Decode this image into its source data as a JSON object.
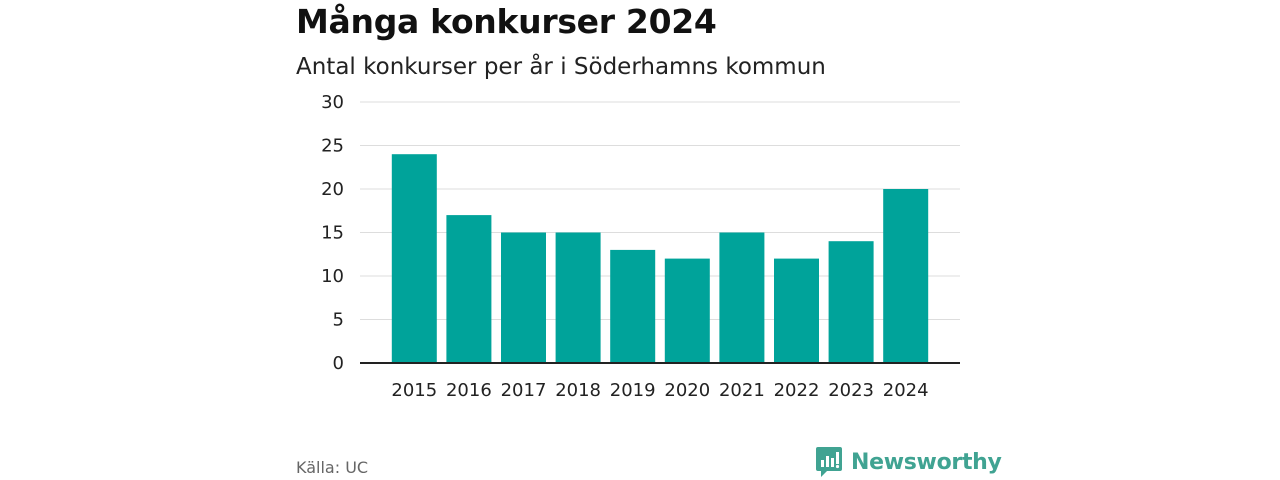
{
  "title": "Många konkurser 2024",
  "subtitle": "Antal konkurser per år i Söderhamns kommun",
  "source": "Källa: UC",
  "brand": {
    "name": "Newsworthy",
    "color": "#40a392",
    "icon": "newsworthy-logo-icon"
  },
  "colors": {
    "bar": "#00a39a",
    "grid": "#dddddd",
    "axis": "#222222"
  },
  "chart_data": {
    "type": "bar",
    "title": "Många konkurser 2024",
    "subtitle": "Antal konkurser per år i Söderhamns kommun",
    "xlabel": "",
    "ylabel": "",
    "categories": [
      "2015",
      "2016",
      "2017",
      "2018",
      "2019",
      "2020",
      "2021",
      "2022",
      "2023",
      "2024"
    ],
    "values": [
      24,
      17,
      15,
      15,
      13,
      12,
      15,
      12,
      14,
      20
    ],
    "ylim": [
      0,
      30
    ],
    "yticks": [
      0,
      5,
      10,
      15,
      20,
      25,
      30
    ],
    "grid": true,
    "legend": "none"
  }
}
